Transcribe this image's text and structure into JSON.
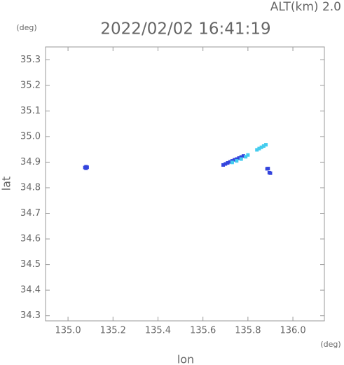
{
  "chart_data": {
    "type": "scatter",
    "title": "2022/02/02 16:41:19",
    "annotation": "ALT(km) 2.0",
    "y_unit": "(deg)",
    "x_unit": "(deg)",
    "ylabel": "lat",
    "xlabel": "lon",
    "xlim": [
      134.9,
      136.14
    ],
    "ylim": [
      34.28,
      35.35
    ],
    "xticks": [
      {
        "value": 135.0,
        "label": "135.0"
      },
      135.2,
      135.4,
      135.6,
      135.8,
      {
        "value": 136.0,
        "label": "136.0"
      }
    ],
    "yticks": [
      34.3,
      34.4,
      34.5,
      34.6,
      34.7,
      34.8,
      34.9,
      {
        "value": 35.0,
        "label": "35.0"
      },
      35.1,
      35.2,
      35.3
    ],
    "series": [
      {
        "color": "#3344dd",
        "x": [
          135.08,
          135.08,
          135.075,
          135.085,
          135.69,
          135.7,
          135.71,
          135.72,
          135.73,
          135.74,
          135.75,
          135.76,
          135.77,
          135.78,
          135.89,
          135.885,
          135.9,
          135.895
        ],
        "y": [
          34.882,
          34.876,
          34.879,
          34.88,
          34.889,
          34.893,
          34.897,
          34.901,
          34.905,
          34.909,
          34.912,
          34.916,
          34.92,
          34.924,
          34.875,
          34.874,
          34.857,
          34.859
        ]
      },
      {
        "color": "#44ccee",
        "x": [
          135.73,
          135.75,
          135.77,
          135.79,
          135.8,
          135.84,
          135.85,
          135.86,
          135.87,
          135.88
        ],
        "y": [
          34.899,
          34.905,
          34.912,
          34.921,
          34.928,
          34.948,
          34.953,
          34.958,
          34.963,
          34.968
        ]
      }
    ]
  }
}
